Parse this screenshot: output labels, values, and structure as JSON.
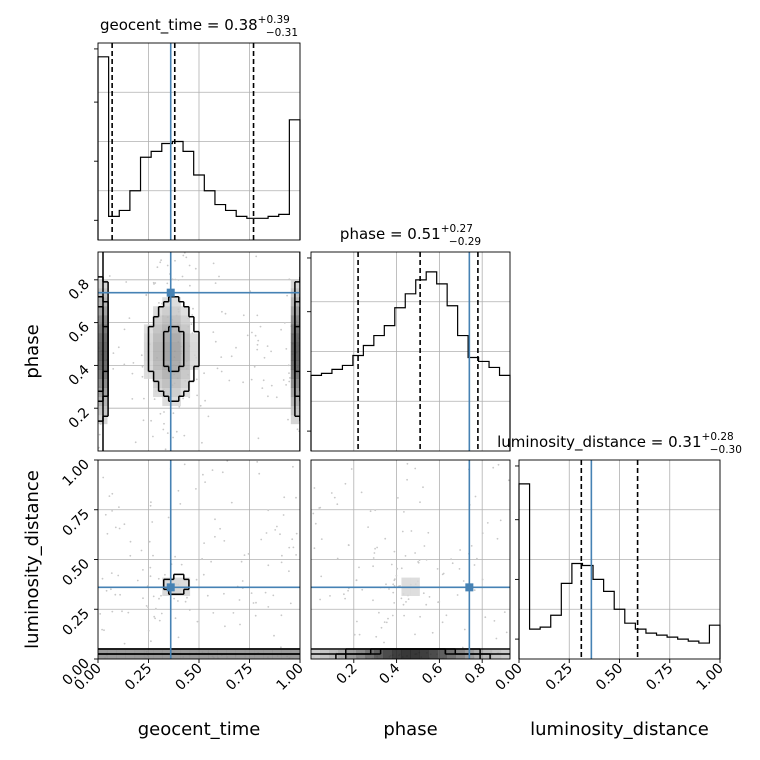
{
  "chart_data": {
    "type": "corner",
    "parameters": [
      {
        "name": "geocent_time",
        "xlabel": "geocent_time",
        "title_prefix": "geocent_time = 0.38",
        "title_sup": "+0.39",
        "title_sub": "−0.31",
        "range": [
          0,
          1
        ],
        "ticks": [
          "0.00",
          "0.25",
          "0.50",
          "0.75",
          "1.00"
        ],
        "tick_values": [
          0,
          0.25,
          0.5,
          0.75,
          1.0
        ],
        "quantiles": [
          0.07,
          0.38,
          0.77
        ],
        "truth": 0.36,
        "hist_values": [
          0.93,
          0.12,
          0.15,
          0.25,
          0.42,
          0.45,
          0.49,
          0.5,
          0.45,
          0.33,
          0.25,
          0.18,
          0.15,
          0.12,
          0.11,
          0.11,
          0.12,
          0.13,
          0.61
        ]
      },
      {
        "name": "phase",
        "xlabel": "phase",
        "ylabel": "phase",
        "title_prefix": "phase = 0.51",
        "title_sup": "+0.27",
        "title_sub": "−0.29",
        "range": [
          0,
          0.93
        ],
        "ticks": [
          "0.2",
          "0.4",
          "0.6",
          "0.8"
        ],
        "tick_values": [
          0.2,
          0.4,
          0.6,
          0.8
        ],
        "quantiles": [
          0.22,
          0.51,
          0.78
        ],
        "truth": 0.74,
        "hist_values": [
          0.38,
          0.39,
          0.41,
          0.43,
          0.48,
          0.53,
          0.58,
          0.63,
          0.72,
          0.79,
          0.86,
          0.9,
          0.84,
          0.73,
          0.58,
          0.47,
          0.45,
          0.42,
          0.38
        ]
      },
      {
        "name": "luminosity_distance",
        "xlabel": "luminosity_distance",
        "ylabel": "luminosity_distance",
        "title_prefix": "luminosity_distance = 0.31",
        "title_sup": "+0.28",
        "title_sub": "−0.30",
        "range": [
          0,
          1
        ],
        "ticks": [
          "0.00",
          "0.25",
          "0.50",
          "0.75",
          "1.00"
        ],
        "tick_values": [
          0,
          0.25,
          0.5,
          0.75,
          1.0
        ],
        "quantiles": [
          0.31,
          0.59
        ],
        "truth": 0.36,
        "hist_values": [
          0.88,
          0.15,
          0.16,
          0.22,
          0.38,
          0.48,
          0.47,
          0.4,
          0.34,
          0.25,
          0.18,
          0.15,
          0.13,
          0.12,
          0.11,
          0.1,
          0.09,
          0.08,
          0.17
        ]
      }
    ],
    "truth_color": "#4682b4",
    "contour_levels": [
      0.12,
      0.39,
      0.68,
      0.86
    ],
    "grid": true
  }
}
